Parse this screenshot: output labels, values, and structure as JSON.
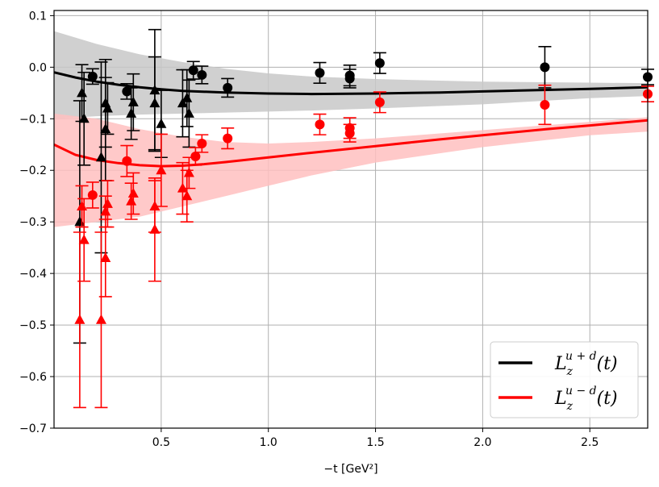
{
  "chart_data": {
    "type": "scatter",
    "title": "",
    "xlabel": "−t [GeV²]",
    "ylabel": "",
    "xlim": [
      0.0,
      2.77
    ],
    "ylim": [
      -0.7,
      0.11
    ],
    "grid": true,
    "legend_position": "bottom-right",
    "x_ticks": [
      {
        "value": 0.5,
        "label": "0.5"
      },
      {
        "value": 1.0,
        "label": "1.0"
      },
      {
        "value": 1.5,
        "label": "1.5"
      },
      {
        "value": 2.0,
        "label": "2.0"
      },
      {
        "value": 2.5,
        "label": "2.5"
      }
    ],
    "y_ticks": [
      {
        "value": 0.1,
        "label": "0.1"
      },
      {
        "value": 0.0,
        "label": "0.0"
      },
      {
        "value": -0.1,
        "label": "−0.1"
      },
      {
        "value": -0.2,
        "label": "−0.2"
      },
      {
        "value": -0.3,
        "label": "−0.3"
      },
      {
        "value": -0.4,
        "label": "−0.4"
      },
      {
        "value": -0.5,
        "label": "−0.5"
      },
      {
        "value": -0.6,
        "label": "−0.6"
      },
      {
        "value": -0.7,
        "label": "−0.7"
      }
    ],
    "series": [
      {
        "name": "L_z^{u+d}(t)",
        "legend_main": "L",
        "legend_sub": "z",
        "legend_sup": "u + d",
        "legend_tail": "(t)",
        "color": "#000000",
        "band_color": "#c8c8c8",
        "curve": [
          [
            0.0,
            -0.01
          ],
          [
            0.1,
            -0.02
          ],
          [
            0.2,
            -0.028
          ],
          [
            0.3,
            -0.034
          ],
          [
            0.4,
            -0.039
          ],
          [
            0.5,
            -0.043
          ],
          [
            0.6,
            -0.046
          ],
          [
            0.8,
            -0.049
          ],
          [
            1.0,
            -0.051
          ],
          [
            1.2,
            -0.052
          ],
          [
            1.5,
            -0.051
          ],
          [
            1.8,
            -0.049
          ],
          [
            2.0,
            -0.047
          ],
          [
            2.3,
            -0.044
          ],
          [
            2.5,
            -0.042
          ],
          [
            2.77,
            -0.039
          ]
        ],
        "band": [
          [
            0.0,
            0.07,
            -0.1
          ],
          [
            0.2,
            0.045,
            -0.095
          ],
          [
            0.4,
            0.025,
            -0.092
          ],
          [
            0.6,
            0.01,
            -0.09
          ],
          [
            0.8,
            -0.003,
            -0.088
          ],
          [
            1.0,
            -0.012,
            -0.086
          ],
          [
            1.2,
            -0.018,
            -0.084
          ],
          [
            1.5,
            -0.023,
            -0.08
          ],
          [
            2.0,
            -0.028,
            -0.072
          ],
          [
            2.5,
            -0.03,
            -0.06
          ],
          [
            2.77,
            -0.031,
            -0.056
          ]
        ],
        "circles": [
          {
            "x": 0.18,
            "y": -0.018,
            "err": 0.015
          },
          {
            "x": 0.34,
            "y": -0.047,
            "err": 0.015
          },
          {
            "x": 0.65,
            "y": -0.006,
            "err": 0.017
          },
          {
            "x": 0.69,
            "y": -0.015,
            "err": 0.017
          },
          {
            "x": 0.81,
            "y": -0.04,
            "err": 0.018
          },
          {
            "x": 1.24,
            "y": -0.011,
            "err": 0.02
          },
          {
            "x": 1.38,
            "y": -0.016,
            "err": 0.02
          },
          {
            "x": 1.38,
            "y": -0.022,
            "err": 0.018
          },
          {
            "x": 1.52,
            "y": 0.008,
            "err": 0.02
          },
          {
            "x": 2.29,
            "y": 0.0,
            "err": 0.04
          },
          {
            "x": 2.77,
            "y": -0.019,
            "err": 0.015
          }
        ],
        "triangles": [
          {
            "x": 0.12,
            "y": -0.3,
            "err": 0.235
          },
          {
            "x": 0.13,
            "y": -0.05,
            "err": 0.055
          },
          {
            "x": 0.14,
            "y": -0.1,
            "err": 0.09
          },
          {
            "x": 0.22,
            "y": -0.175,
            "err": 0.185
          },
          {
            "x": 0.24,
            "y": -0.07,
            "err": 0.085
          },
          {
            "x": 0.24,
            "y": -0.12,
            "err": 0.1
          },
          {
            "x": 0.25,
            "y": -0.08,
            "err": 0.05
          },
          {
            "x": 0.36,
            "y": -0.09,
            "err": 0.05
          },
          {
            "x": 0.37,
            "y": -0.068,
            "err": 0.055
          },
          {
            "x": 0.47,
            "y": -0.045,
            "err": 0.118
          },
          {
            "x": 0.47,
            "y": -0.07,
            "err": 0.09
          },
          {
            "x": 0.5,
            "y": -0.11,
            "err": 0.065
          },
          {
            "x": 0.6,
            "y": -0.07,
            "err": 0.065
          },
          {
            "x": 0.62,
            "y": -0.06,
            "err": 0.055
          },
          {
            "x": 0.63,
            "y": -0.09,
            "err": 0.065
          }
        ]
      },
      {
        "name": "L_z^{u-d}(t)",
        "legend_main": "L",
        "legend_sub": "z",
        "legend_sup": "u − d",
        "legend_tail": "(t)",
        "color": "#ff0000",
        "band_color": "#ffc0c0",
        "curve": [
          [
            0.0,
            -0.15
          ],
          [
            0.1,
            -0.17
          ],
          [
            0.2,
            -0.18
          ],
          [
            0.3,
            -0.186
          ],
          [
            0.4,
            -0.19
          ],
          [
            0.5,
            -0.192
          ],
          [
            0.6,
            -0.191
          ],
          [
            0.7,
            -0.188
          ],
          [
            0.8,
            -0.184
          ],
          [
            1.0,
            -0.175
          ],
          [
            1.2,
            -0.166
          ],
          [
            1.5,
            -0.153
          ],
          [
            1.8,
            -0.14
          ],
          [
            2.0,
            -0.132
          ],
          [
            2.3,
            -0.12
          ],
          [
            2.5,
            -0.113
          ],
          [
            2.77,
            -0.103
          ]
        ],
        "band": [
          [
            0.0,
            -0.09,
            -0.31
          ],
          [
            0.2,
            -0.1,
            -0.3
          ],
          [
            0.4,
            -0.12,
            -0.29
          ],
          [
            0.6,
            -0.135,
            -0.27
          ],
          [
            0.8,
            -0.145,
            -0.25
          ],
          [
            1.0,
            -0.148,
            -0.23
          ],
          [
            1.2,
            -0.145,
            -0.21
          ],
          [
            1.5,
            -0.138,
            -0.185
          ],
          [
            2.0,
            -0.122,
            -0.155
          ],
          [
            2.5,
            -0.106,
            -0.132
          ],
          [
            2.77,
            -0.097,
            -0.125
          ]
        ],
        "circles": [
          {
            "x": 0.18,
            "y": -0.248,
            "err": 0.025
          },
          {
            "x": 0.34,
            "y": -0.182,
            "err": 0.03
          },
          {
            "x": 0.66,
            "y": -0.173,
            "err": 0.017
          },
          {
            "x": 0.69,
            "y": -0.148,
            "err": 0.017
          },
          {
            "x": 0.81,
            "y": -0.138,
            "err": 0.02
          },
          {
            "x": 1.24,
            "y": -0.111,
            "err": 0.02
          },
          {
            "x": 1.38,
            "y": -0.118,
            "err": 0.02
          },
          {
            "x": 1.38,
            "y": -0.128,
            "err": 0.017
          },
          {
            "x": 1.52,
            "y": -0.068,
            "err": 0.02
          },
          {
            "x": 2.29,
            "y": -0.073,
            "err": 0.038
          },
          {
            "x": 2.77,
            "y": -0.052,
            "err": 0.015
          }
        ],
        "triangles": [
          {
            "x": 0.12,
            "y": -0.49,
            "err": 0.17
          },
          {
            "x": 0.13,
            "y": -0.27,
            "err": 0.04
          },
          {
            "x": 0.14,
            "y": -0.335,
            "err": 0.08
          },
          {
            "x": 0.22,
            "y": -0.49,
            "err": 0.17
          },
          {
            "x": 0.24,
            "y": -0.37,
            "err": 0.075
          },
          {
            "x": 0.24,
            "y": -0.28,
            "err": 0.03
          },
          {
            "x": 0.25,
            "y": -0.265,
            "err": 0.045
          },
          {
            "x": 0.36,
            "y": -0.26,
            "err": 0.035
          },
          {
            "x": 0.37,
            "y": -0.245,
            "err": 0.04
          },
          {
            "x": 0.47,
            "y": -0.27,
            "err": 0.05
          },
          {
            "x": 0.47,
            "y": -0.315,
            "err": 0.1
          },
          {
            "x": 0.5,
            "y": -0.2,
            "err": 0.07
          },
          {
            "x": 0.6,
            "y": -0.235,
            "err": 0.05
          },
          {
            "x": 0.62,
            "y": -0.25,
            "err": 0.05
          },
          {
            "x": 0.63,
            "y": -0.205,
            "err": 0.03
          }
        ]
      }
    ]
  }
}
